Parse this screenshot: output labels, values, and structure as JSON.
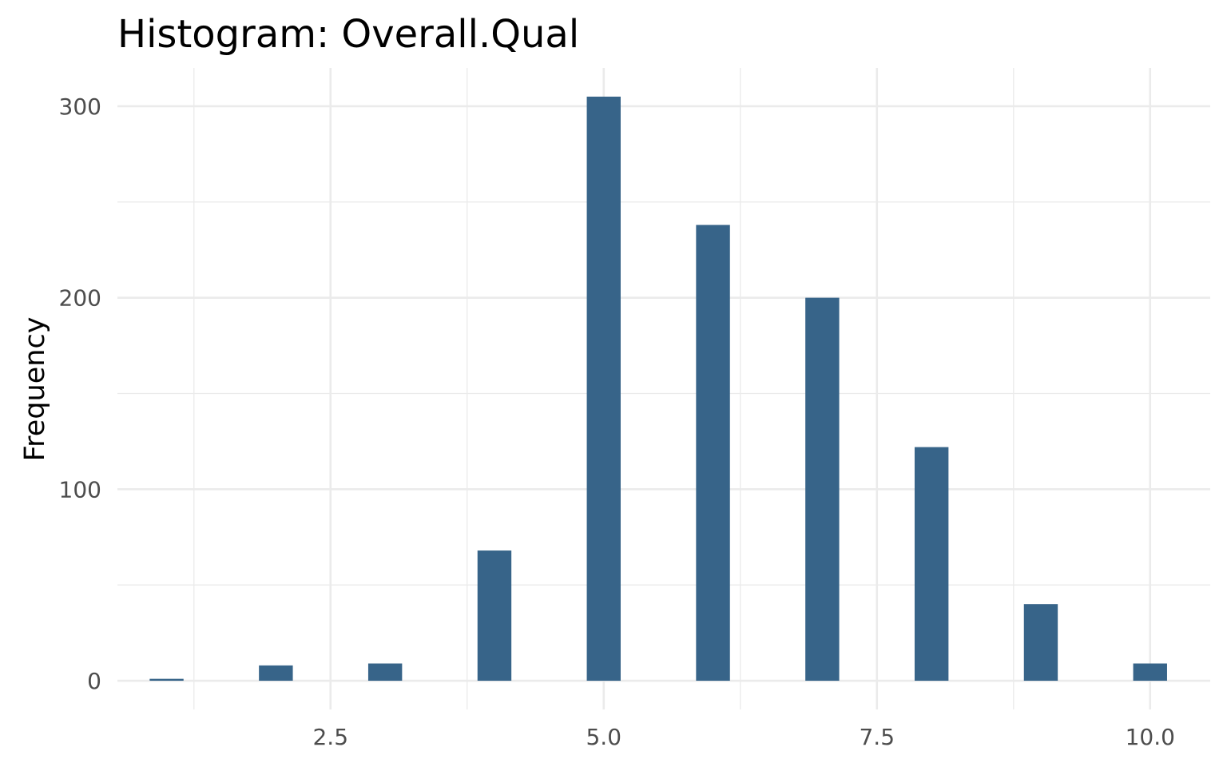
{
  "chart_data": {
    "type": "bar",
    "title": "Histogram:  Overall.Qual",
    "xlabel": "",
    "ylabel": "Frequency",
    "x": [
      1,
      2,
      3,
      4,
      5,
      6,
      7,
      8,
      9,
      10
    ],
    "values": [
      1,
      8,
      9,
      68,
      305,
      238,
      200,
      122,
      40,
      9
    ],
    "bin_width": 0.31,
    "xlim": [
      0.55,
      10.55
    ],
    "ylim": [
      -15,
      320
    ],
    "x_ticks": [
      2.5,
      5.0,
      7.5,
      10.0
    ],
    "x_tick_labels": [
      "2.5",
      "5.0",
      "7.5",
      "10.0"
    ],
    "x_minor_ticks": [
      1.25,
      3.75,
      6.25,
      8.75
    ],
    "y_ticks": [
      0,
      100,
      200,
      300
    ],
    "y_tick_labels": [
      "0",
      "100",
      "200",
      "300"
    ],
    "y_minor_ticks": [
      50,
      150,
      250
    ],
    "grid": true,
    "legend": "none",
    "bar_color": "#376489"
  }
}
